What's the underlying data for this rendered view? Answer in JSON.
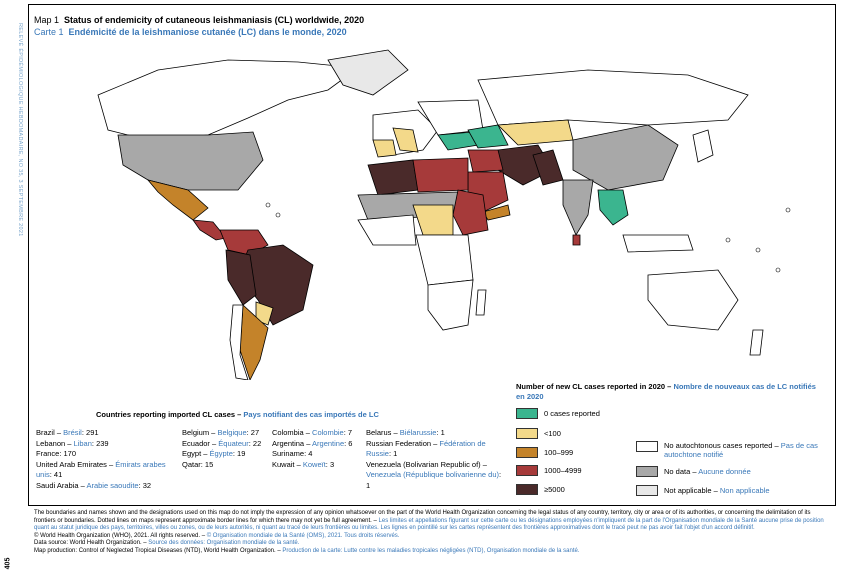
{
  "side_label": "RELEVÉ ÉPIDÉMIOLOGIQUE HEBDOMADAIRE, NO 35, 3 SEPTEMBRE 2021",
  "page_number": "405",
  "title": {
    "en_prefix": "Map 1",
    "en": "Status of endemicity of cutaneous leishmaniasis (CL) worldwide, 2020",
    "fr_prefix": "Carte 1",
    "fr": "Endémicité de la leishmaniose cutanée (LC) dans le monde, 2020"
  },
  "legend": {
    "title_en": "Number of new CL cases reported in 2020 –",
    "title_fr": "Nombre de nouveaux cas de LC notifiés en 2020",
    "items": [
      {
        "label": "0 cases reported",
        "color": "#3bb58f"
      },
      {
        "label": "<100",
        "color": "#f3d98a"
      },
      {
        "label": "100–999",
        "color": "#c4832a"
      },
      {
        "label": "1000–4999",
        "color": "#a63a3a"
      },
      {
        "label": "≥5000",
        "color": "#4a2a2a"
      }
    ],
    "other": [
      {
        "label_en": "No autochtonous cases reported –",
        "label_fr": "Pas de cas autochtone notifié",
        "color": "#ffffff"
      },
      {
        "label_en": "No data –",
        "label_fr": "Aucune donnée",
        "color": "#a8a8a8"
      },
      {
        "label_en": "Not applicable –",
        "label_fr": "Non applicable",
        "color": "#e8e8e8"
      }
    ]
  },
  "imported": {
    "title_en": "Countries reporting imported CL cases –",
    "title_fr": "Pays notifiant des cas importés de LC",
    "col1": [
      {
        "en": "Brazil –",
        "fr": "Brésil",
        "n": ": 291"
      },
      {
        "en": "Lebanon –",
        "fr": "Liban",
        "n": ": 239"
      },
      {
        "en": "France: 170",
        "fr": "",
        "n": ""
      },
      {
        "en": "United Arab Emirates –",
        "fr": "Émirats arabes unis",
        "n": ": 41"
      },
      {
        "en": "Saudi Arabia –",
        "fr": "Arabie saoudite",
        "n": ": 32"
      }
    ],
    "col2": [
      {
        "en": "Belgium –",
        "fr": "Belgique",
        "n": ": 27"
      },
      {
        "en": "Ecuador –",
        "fr": "Équateur",
        "n": ": 22"
      },
      {
        "en": "Egypt –",
        "fr": "Égypte",
        "n": ": 19"
      },
      {
        "en": "Qatar: 15",
        "fr": "",
        "n": ""
      }
    ],
    "col3": [
      {
        "en": "Colombia –",
        "fr": "Colombie",
        "n": ": 7"
      },
      {
        "en": "Argentina –",
        "fr": "Argentine",
        "n": ": 6"
      },
      {
        "en": "Suriname: 4",
        "fr": "",
        "n": ""
      },
      {
        "en": "Kuwait –",
        "fr": "Koweït",
        "n": ": 3"
      }
    ],
    "col4": [
      {
        "en": "Belarus –",
        "fr": "Biélarussie",
        "n": ": 1"
      },
      {
        "en": "Russian Federation –",
        "fr": "Fédération de Russie",
        "n": ": 1"
      },
      {
        "en": "Venezuela (Bolivarian Republic of) –",
        "fr": "Venezuela (République bolivarienne du)",
        "n": ": 1"
      }
    ]
  },
  "footer": {
    "line1_en": "The boundaries and names shown and the designations used on this map do not imply the expression of any opinion whatsoever on the part of the World Health Organization concerning the legal status of any country, territory, city or area or of its authorities, or concerning the delimitation of its frontiers or boundaries. Dotted lines on maps represent approximate border lines for which there may not yet be full agreement. –",
    "line1_fr": "Les limites et appellations figurant sur cette carte ou les désignations employées n'impliquent de la part de l'Organisation mondiale de la Santé aucune prise de position quant au statut juridique des pays, territoires, villes ou zones, ou de leurs autorités, ni quant au tracé de leurs frontières ou limites. Les lignes en pointillé sur les cartes représentent des frontières approximatives dont le tracé peut ne pas avoir fait l'objet d'un accord définitif.",
    "copyright_en": "© World Health Organization (WHO), 2021. All rights reserved. –",
    "copyright_fr": "© Organisation mondiale de la Santé (OMS), 2021. Tous droits réservés.",
    "source_en": "Data source: World Health Organization. –",
    "source_fr": "Source des données: Organisation mondiale de la santé.",
    "production_en": "Map production: Control of Neglected Tropical Diseases (NTD), World Health Organization. –",
    "production_fr": "Production de la carte: Lutte contre les maladies tropicales négligées (NTD), Organisation mondiale de la santé."
  }
}
